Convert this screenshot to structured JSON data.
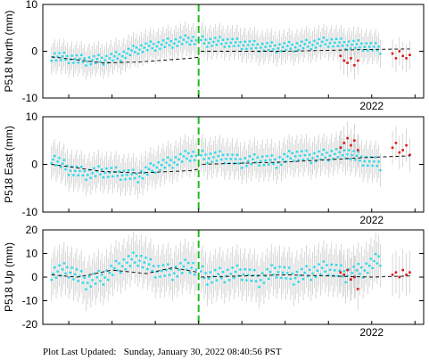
{
  "footer": {
    "label": "Plot Last Updated:",
    "timestamp": "Sunday, January 30, 2022 08:40:56 PST"
  },
  "colors": {
    "point": "#22ddee",
    "recent_point": "#e01818",
    "error_bar": "#c8c8c8",
    "model": "#000000",
    "offset_line": "#22bb22"
  },
  "chart_data": [
    {
      "type": "scatter",
      "station": "P518",
      "component": "North",
      "ylabel": "P518 North (mm)",
      "ylim": [
        -10,
        10
      ],
      "yticks": [
        -10,
        0,
        10
      ],
      "xlim": [
        2020.1,
        2022.3
      ],
      "xtick_labels": [
        {
          "x": 2022.0,
          "label": "2022"
        }
      ],
      "offset_x": 2021.0,
      "error_bar_mm": 3,
      "series": [
        {
          "role": "data",
          "x": [
            2020.15,
            2020.25,
            2020.35,
            2020.45,
            2020.55,
            2020.65,
            2020.75,
            2020.85,
            2020.95,
            2021.05,
            2021.15,
            2021.25,
            2021.35,
            2021.45,
            2021.55,
            2021.65,
            2021.75,
            2021.85,
            2021.95,
            2022.05
          ],
          "y": [
            -1.0,
            -1.5,
            -2.0,
            -1.8,
            -1.0,
            0.5,
            1.2,
            1.8,
            2.5,
            2.0,
            2.0,
            1.5,
            1.0,
            0.8,
            1.0,
            1.5,
            2.0,
            1.5,
            1.2,
            0.5
          ]
        },
        {
          "role": "recent",
          "x": [
            2021.82,
            2021.84,
            2021.86,
            2021.88,
            2021.9,
            2021.92,
            2022.12,
            2022.14,
            2022.16,
            2022.18,
            2022.2,
            2022.22
          ],
          "y": [
            -1.0,
            -2.0,
            -2.5,
            -1.5,
            -3.0,
            -2.0,
            -0.5,
            -1.5,
            0.0,
            -1.0,
            -1.5,
            -0.8
          ]
        },
        {
          "role": "model",
          "x": [
            2020.15,
            2020.45,
            2020.65,
            2020.95,
            2021.0,
            2021.0,
            2021.5,
            2022.0,
            2022.22
          ],
          "y": [
            -1.2,
            -2.5,
            -2.3,
            -1.5,
            -1.3,
            0.0,
            0.0,
            0.4,
            0.5
          ]
        }
      ]
    },
    {
      "type": "scatter",
      "station": "P518",
      "component": "East",
      "ylabel": "P518 East (mm)",
      "ylim": [
        -10,
        10
      ],
      "yticks": [
        -10,
        0,
        10
      ],
      "xlim": [
        2020.1,
        2022.3
      ],
      "xtick_labels": [
        {
          "x": 2022.0,
          "label": "2022"
        }
      ],
      "offset_x": 2021.0,
      "error_bar_mm": 3.5,
      "series": [
        {
          "role": "data",
          "x": [
            2020.15,
            2020.25,
            2020.35,
            2020.45,
            2020.55,
            2020.65,
            2020.75,
            2020.85,
            2020.95,
            2021.05,
            2021.15,
            2021.25,
            2021.35,
            2021.45,
            2021.55,
            2021.65,
            2021.75,
            2021.85,
            2021.95,
            2022.05
          ],
          "y": [
            1.5,
            -1.0,
            -2.0,
            -1.5,
            -2.0,
            -2.5,
            -0.5,
            0.5,
            2.0,
            1.5,
            1.5,
            0.5,
            1.0,
            0.5,
            2.0,
            1.5,
            2.0,
            2.5,
            1.0,
            0.0
          ]
        },
        {
          "role": "recent",
          "x": [
            2021.82,
            2021.84,
            2021.86,
            2021.88,
            2021.9,
            2021.92,
            2022.12,
            2022.14,
            2022.16,
            2022.18,
            2022.2,
            2022.22
          ],
          "y": [
            3.5,
            4.5,
            5.5,
            4.0,
            5.0,
            3.0,
            3.5,
            4.5,
            2.5,
            3.0,
            4.0,
            2.0
          ]
        },
        {
          "role": "model",
          "x": [
            2020.15,
            2020.45,
            2020.65,
            2020.95,
            2021.0,
            2021.0,
            2021.5,
            2022.0,
            2022.22
          ],
          "y": [
            0.0,
            -1.5,
            -1.8,
            -1.3,
            -1.0,
            0.0,
            0.5,
            1.5,
            1.8
          ]
        }
      ]
    },
    {
      "type": "scatter",
      "station": "P518",
      "component": "Up",
      "ylabel": "P518 Up (mm)",
      "ylim": [
        -20,
        20
      ],
      "yticks": [
        -20,
        -10,
        0,
        10,
        20
      ],
      "xlim": [
        2020.1,
        2022.3
      ],
      "xtick_labels": [
        {
          "x": 2022.0,
          "label": "2022"
        }
      ],
      "offset_x": 2021.0,
      "error_bar_mm": 9,
      "series": [
        {
          "role": "data",
          "x": [
            2020.15,
            2020.25,
            2020.35,
            2020.45,
            2020.55,
            2020.65,
            2020.75,
            2020.85,
            2020.95,
            2021.05,
            2021.15,
            2021.25,
            2021.35,
            2021.45,
            2021.55,
            2021.65,
            2021.75,
            2021.85,
            2021.95,
            2022.05
          ],
          "y": [
            2.0,
            3.0,
            -2.0,
            0.0,
            5.0,
            8.0,
            3.0,
            2.0,
            5.0,
            0.0,
            1.0,
            2.0,
            -1.0,
            3.0,
            0.0,
            2.0,
            4.0,
            1.0,
            3.0,
            8.0
          ]
        },
        {
          "role": "recent",
          "x": [
            2021.82,
            2021.84,
            2021.86,
            2021.88,
            2021.9,
            2021.92,
            2022.12,
            2022.14,
            2022.16,
            2022.18,
            2022.2,
            2022.22
          ],
          "y": [
            2.0,
            1.0,
            3.0,
            -1.0,
            0.0,
            -5.0,
            1.0,
            2.0,
            0.0,
            3.0,
            1.0,
            2.0
          ]
        },
        {
          "role": "model",
          "x": [
            2020.15,
            2020.3,
            2020.5,
            2020.7,
            2020.85,
            2021.0,
            2021.0,
            2021.5,
            2022.0,
            2022.22
          ],
          "y": [
            1.0,
            0.0,
            3.0,
            1.5,
            4.0,
            2.0,
            0.0,
            1.0,
            0.0,
            0.5
          ]
        }
      ]
    }
  ]
}
